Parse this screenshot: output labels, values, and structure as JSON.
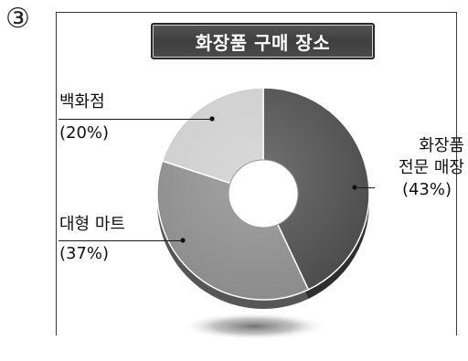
{
  "option_number": "③",
  "chart_data": {
    "type": "pie",
    "title": "화장품 구매 장소",
    "unit": "%",
    "slices": [
      {
        "label_lines": [
          "화장품",
          "전문 매장"
        ],
        "value": 43,
        "value_label": "(43%)",
        "color": "#4a4a4a"
      },
      {
        "label_lines": [
          "대형 마트"
        ],
        "value": 37,
        "value_label": "(37%)",
        "color": "#8a8a8a"
      },
      {
        "label_lines": [
          "백화점"
        ],
        "value": 20,
        "value_label": "(20%)",
        "color": "#cdcdcd"
      }
    ]
  }
}
